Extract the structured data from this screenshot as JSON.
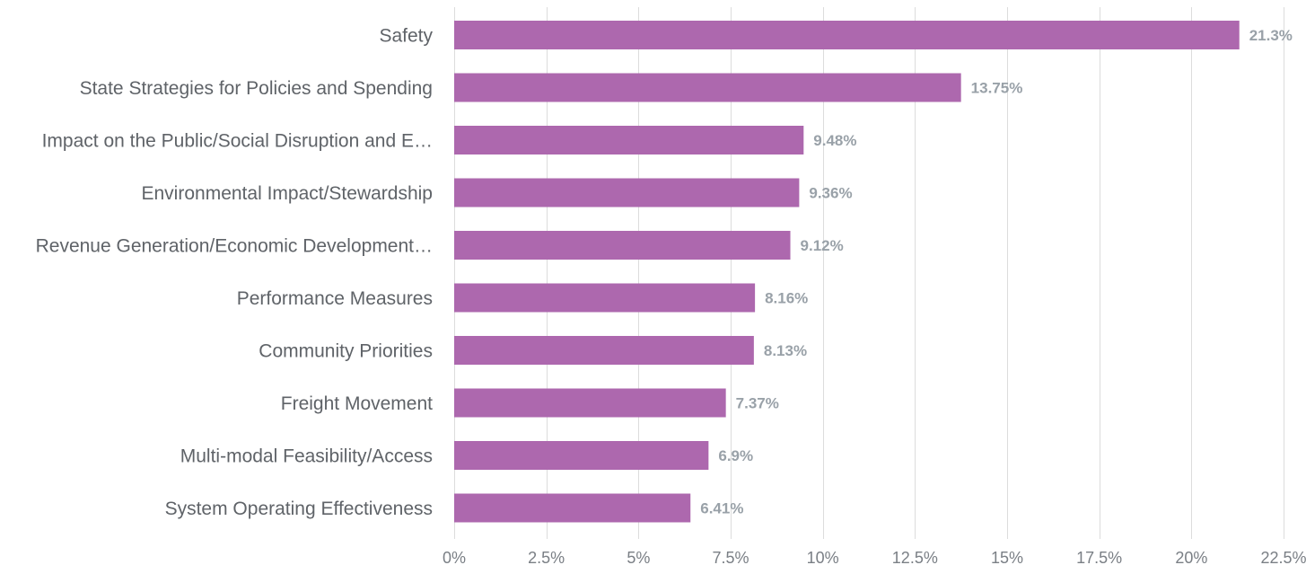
{
  "chart_data": {
    "type": "bar",
    "orientation": "horizontal",
    "categories": [
      "Safety",
      "State Strategies for Policies and Spending",
      "Impact on the Public/Social Disruption and E…",
      "Environmental Impact/Stewardship",
      "Revenue Generation/Economic Development…",
      "Performance Measures",
      "Community Priorities",
      "Freight Movement",
      "Multi-modal Feasibility/Access",
      "System Operating Effectiveness"
    ],
    "values": [
      21.3,
      13.75,
      9.48,
      9.36,
      9.12,
      8.16,
      8.13,
      7.37,
      6.9,
      6.41
    ],
    "data_labels": [
      "21.3%",
      "13.75%",
      "9.48%",
      "9.36%",
      "9.12%",
      "8.16%",
      "8.13%",
      "7.37%",
      "6.9%",
      "6.41%"
    ],
    "x_ticks": [
      0,
      2.5,
      5,
      7.5,
      10,
      12.5,
      15,
      17.5,
      20,
      22.5
    ],
    "x_tick_labels": [
      "0%",
      "2.5%",
      "5%",
      "7.5%",
      "10%",
      "12.5%",
      "15%",
      "17.5%",
      "20%",
      "22.5%"
    ],
    "xlim": [
      0,
      22.5
    ],
    "grid": "vertical",
    "legend": "none",
    "title": "",
    "xlabel": "",
    "ylabel": ""
  },
  "colors": {
    "bar": "#ad68ae",
    "grid": "#dcdcdc",
    "category_text": "#5f6368",
    "tick_text": "#7a7f85",
    "data_label_text": "#99a1a8",
    "background": "#ffffff"
  }
}
